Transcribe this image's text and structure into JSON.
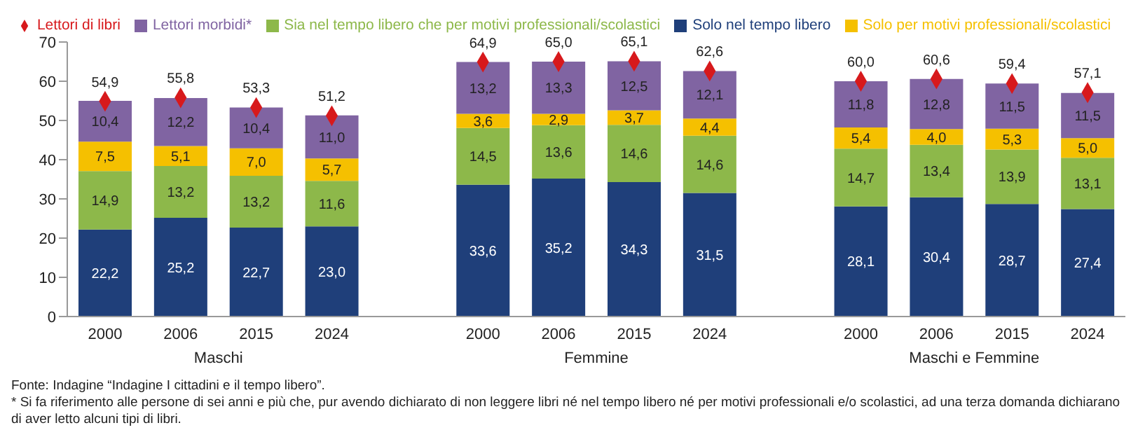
{
  "chart_data": {
    "type": "bar",
    "stacked": true,
    "legend": "top",
    "ylim": [
      0,
      70
    ],
    "yticks": [
      0,
      10,
      20,
      30,
      40,
      50,
      60,
      70
    ],
    "categories": [
      "2000",
      "2006",
      "2015",
      "2024",
      null,
      "2000",
      "2006",
      "2015",
      "2024",
      null,
      "2000",
      "2006",
      "2015",
      "2024"
    ],
    "series": [
      {
        "name": "Solo nel tempo libero",
        "color": "#1f3f7a",
        "values": [
          22.2,
          25.2,
          22.7,
          23.0,
          null,
          33.6,
          35.2,
          34.3,
          31.5,
          null,
          28.1,
          30.4,
          28.7,
          27.4
        ],
        "value_labels": [
          "22,2",
          "25,2",
          "22,7",
          "23,0",
          null,
          "33,6",
          "35,2",
          "34,3",
          "31,5",
          null,
          "28,1",
          "30,4",
          "28,7",
          "27,4"
        ]
      },
      {
        "name": "Sia nel tempo libero che per motivi professionali/scolastici",
        "color": "#8db84a",
        "values": [
          14.9,
          13.2,
          13.2,
          11.6,
          null,
          14.5,
          13.6,
          14.6,
          14.6,
          null,
          14.7,
          13.4,
          13.9,
          13.1
        ],
        "value_labels": [
          "14,9",
          "13,2",
          "13,2",
          "11,6",
          null,
          "14,5",
          "13,6",
          "14,6",
          "14,6",
          null,
          "14,7",
          "13,4",
          "13,9",
          "13,1"
        ]
      },
      {
        "name": "Solo per motivi professionali/scolastici",
        "color": "#f5c000",
        "values": [
          7.5,
          5.1,
          7.0,
          5.7,
          null,
          3.6,
          2.9,
          3.7,
          4.4,
          null,
          5.4,
          4.0,
          5.3,
          5.0
        ],
        "value_labels": [
          "7,5",
          "5,1",
          "7,0",
          "5,7",
          null,
          "3,6",
          "2,9",
          "3,7",
          "4,4",
          null,
          "5,4",
          "4,0",
          "5,3",
          "5,0"
        ]
      },
      {
        "name": "Lettori morbidi*",
        "color": "#8064a2",
        "values": [
          10.4,
          12.2,
          10.4,
          11.0,
          null,
          13.2,
          13.3,
          12.5,
          12.1,
          null,
          11.8,
          12.8,
          11.5,
          11.5
        ],
        "value_labels": [
          "10,4",
          "12,2",
          "10,4",
          "11,0",
          null,
          "13,2",
          "13,3",
          "12,5",
          "12,1",
          null,
          "11,8",
          "12,8",
          "11,5",
          "11,5"
        ]
      },
      {
        "name": "Lettori di libri",
        "type": "scatter",
        "marker": "diamond",
        "color": "#d7191c",
        "values": [
          54.9,
          55.8,
          53.3,
          51.2,
          null,
          64.9,
          65.0,
          65.1,
          62.6,
          null,
          60.0,
          60.6,
          59.4,
          57.1
        ],
        "value_labels": [
          "54,9",
          "55,8",
          "53,3",
          "51,2",
          null,
          "64,9",
          "65,0",
          "65,1",
          "62,6",
          null,
          "60,0",
          "60,6",
          "59,4",
          "57,1"
        ]
      }
    ],
    "annotations": [
      "Maschi",
      "Femmine",
      "Maschi e Femmine",
      "Fonte: Indagine “Indagine I cittadini e il tempo libero”.",
      "* Si fa riferimento alle persone di sei anni e più che, pur avendo dichiarato di non leggere libri né nel tempo libero né per motivi professionali e/o scolastici, ad una terza domanda dichiarano di aver letto alcuni tipi di libri."
    ]
  }
}
